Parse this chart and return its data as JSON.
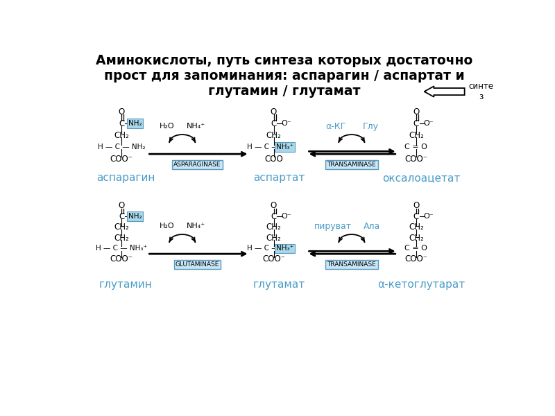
{
  "title_line1": "Аминокислоты, путь синтеза которых достаточно",
  "title_line2": "прост для запоминания: аспарагин / аспартат и",
  "title_line3": "глутамин / глутамат",
  "title_fontsize": 13.5,
  "bg_color": "#ffffff",
  "black": "#000000",
  "blue": "#4a9cc7",
  "highlight": "#a8d8ea",
  "box_bg": "#c8e6f5",
  "box_border": "#5a9abf",
  "synth_label": "синте\nз",
  "row1_left_label": "аспарагин",
  "row1_mid_label": "аспартат",
  "row1_right_label": "оксалоацетат",
  "row2_left_label": "глутамин",
  "row2_mid_label": "глутамат",
  "row2_right_label": "α-кетоглутарат",
  "enzyme1a": "ASPARAGINASE",
  "enzyme1b": "TRANSAMINASE",
  "enzyme2a": "GLUTAMINASE",
  "enzyme2b": "TRANSAMINASE",
  "akg_label": "α-КГ",
  "glu_label": "Глу",
  "pyr_label": "пируват",
  "ala_label": "Ала",
  "h2o": "H₂O",
  "nh4": "NH₄⁺"
}
